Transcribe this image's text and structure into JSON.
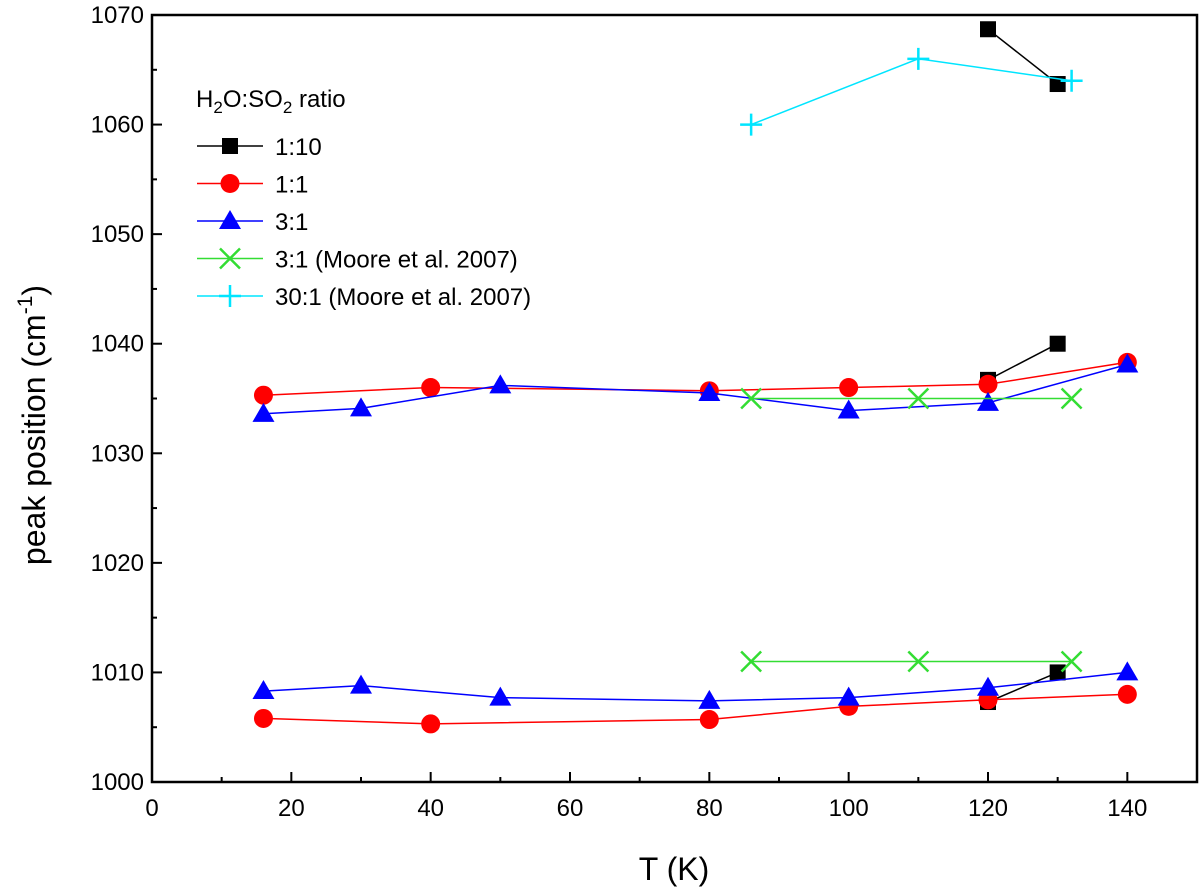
{
  "chart_data": {
    "type": "line",
    "title": "",
    "xlabel": "T (K)",
    "ylabel_parts": {
      "main": "peak position (cm",
      "sup": "-1",
      "close": ")"
    },
    "xlim": [
      0,
      150
    ],
    "ylim": [
      1000,
      1070
    ],
    "xticks": [
      0,
      20,
      40,
      60,
      80,
      100,
      120,
      140
    ],
    "yticks": [
      1000,
      1010,
      1020,
      1030,
      1040,
      1050,
      1060,
      1070
    ],
    "legend": {
      "placement": "top-left",
      "title_parts": {
        "a": "H",
        "s1": "2",
        "b": "O:SO",
        "s2": "2",
        "c": " ratio"
      }
    },
    "series": [
      {
        "name": "1:10",
        "color": "#000000",
        "marker": "square",
        "segments": [
          [
            [
              120,
              1068.7
            ],
            [
              130,
              1063.7
            ]
          ],
          [
            [
              120,
              1036.7
            ],
            [
              130,
              1040.0
            ]
          ],
          [
            [
              120,
              1007.3
            ],
            [
              130,
              1010.0
            ]
          ]
        ]
      },
      {
        "name": "1:1",
        "color": "#ff0000",
        "marker": "circle",
        "segments": [
          [
            [
              16,
              1035.3
            ],
            [
              40,
              1036.0
            ],
            [
              80,
              1035.7
            ],
            [
              100,
              1036.0
            ],
            [
              120,
              1036.3
            ],
            [
              140,
              1038.3
            ]
          ],
          [
            [
              16,
              1005.8
            ],
            [
              40,
              1005.3
            ],
            [
              80,
              1005.7
            ],
            [
              100,
              1006.9
            ],
            [
              120,
              1007.5
            ],
            [
              140,
              1008.0
            ]
          ]
        ]
      },
      {
        "name": "3:1",
        "color": "#0000ff",
        "marker": "triangle",
        "segments": [
          [
            [
              16,
              1033.6
            ],
            [
              30,
              1034.1
            ],
            [
              50,
              1036.2
            ],
            [
              80,
              1035.5
            ],
            [
              100,
              1033.9
            ],
            [
              120,
              1034.6
            ],
            [
              140,
              1038.1
            ]
          ],
          [
            [
              16,
              1008.3
            ],
            [
              30,
              1008.8
            ],
            [
              50,
              1007.7
            ],
            [
              80,
              1007.4
            ],
            [
              100,
              1007.7
            ],
            [
              120,
              1008.6
            ],
            [
              140,
              1010.0
            ]
          ]
        ]
      },
      {
        "name": "3:1 (Moore et al. 2007)",
        "color": "#33dd33",
        "marker": "x",
        "segments": [
          [
            [
              86,
              1035.0
            ],
            [
              110,
              1035.0
            ],
            [
              132,
              1035.0
            ]
          ],
          [
            [
              86,
              1011.0
            ],
            [
              110,
              1011.0
            ],
            [
              132,
              1011.0
            ]
          ]
        ]
      },
      {
        "name": "30:1 (Moore et al. 2007)",
        "color": "#00e5ff",
        "marker": "plus",
        "segments": [
          [
            [
              86,
              1060.0
            ],
            [
              110,
              1066.0
            ],
            [
              132,
              1064.0
            ]
          ]
        ]
      }
    ]
  }
}
